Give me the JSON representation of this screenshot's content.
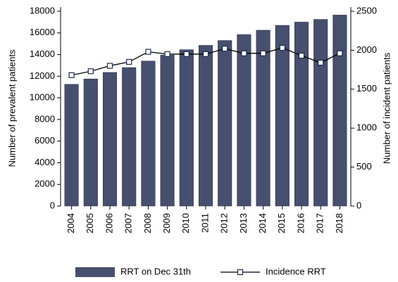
{
  "chart_data": {
    "type": "bar_line",
    "categories": [
      "2004",
      "2005",
      "2006",
      "2007",
      "2008",
      "2009",
      "2010",
      "2011",
      "2012",
      "2013",
      "2014",
      "2015",
      "2016",
      "2017",
      "2018"
    ],
    "series": [
      {
        "name": "RRT on Dec 31th",
        "type": "bar",
        "color": "#474f6e",
        "axis": "y",
        "values": [
          11250,
          11750,
          12350,
          12800,
          13400,
          13950,
          14450,
          14850,
          15300,
          15850,
          16250,
          16700,
          17000,
          17250,
          17650
        ]
      },
      {
        "name": "Incidence RRT",
        "type": "line",
        "color": "#000000",
        "axis": "y2",
        "values": [
          1680,
          1730,
          1800,
          1850,
          1980,
          1950,
          1950,
          1950,
          2020,
          1960,
          1960,
          2030,
          1930,
          1840,
          1960
        ]
      }
    ],
    "ylabel": "Number of prevalent patients",
    "y2label": "Number of incident patients",
    "ylim": [
      0,
      18000
    ],
    "yticks": [
      0,
      2000,
      4000,
      6000,
      8000,
      10000,
      12000,
      14000,
      16000,
      18000
    ],
    "y2lim": [
      0,
      2500
    ],
    "y2ticks": [
      0,
      500,
      1000,
      1500,
      2000,
      2500
    ]
  }
}
